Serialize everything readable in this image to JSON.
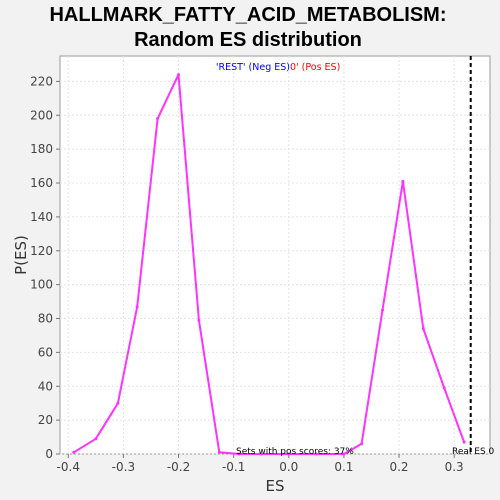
{
  "chart_data": {
    "type": "line",
    "title_line1": "HALLMARK_FATTY_ACID_METABOLISM:",
    "title_line2": "Random ES distribution",
    "xlabel": "ES",
    "ylabel": "P(ES)",
    "xlim": [
      -0.415,
      0.365
    ],
    "ylim": [
      0,
      235
    ],
    "x_ticks": [
      -0.4,
      -0.3,
      -0.2,
      -0.1,
      0.0,
      0.1,
      0.2,
      0.3
    ],
    "x_tick_labels": [
      "-0.4",
      "-0.3",
      "-0.2",
      "-0.1",
      "0.0",
      "0.1",
      "0.2",
      "0.3"
    ],
    "y_ticks": [
      0,
      20,
      40,
      60,
      80,
      100,
      120,
      140,
      160,
      180,
      200,
      220
    ],
    "y_tick_labels": [
      "0",
      "20",
      "40",
      "60",
      "80",
      "100",
      "120",
      "140",
      "160",
      "180",
      "200",
      "220"
    ],
    "grid": true,
    "series": [
      {
        "color": "#ff33ff",
        "x": [
          -0.39,
          -0.35,
          -0.31,
          -0.275,
          -0.238,
          -0.2,
          -0.163,
          -0.126,
          -0.09,
          -0.05,
          0.0,
          0.05,
          0.1,
          0.132,
          0.17,
          0.207,
          0.244,
          0.282,
          0.318
        ],
        "y": [
          1,
          9,
          30,
          87,
          198,
          224,
          79,
          1,
          0,
          0,
          0,
          0,
          0,
          6,
          85,
          161,
          74,
          39,
          7
        ]
      }
    ],
    "real_es": 0.33,
    "real_es_label": "Real ES 0",
    "legend": {
      "neg_label": "'REST' (Neg ES)",
      "pos_label": "0' (Pos ES)",
      "neg_color": "#0000ff",
      "pos_color": "#ff0000"
    },
    "annotation": "Sets with pos scores: 37%"
  }
}
